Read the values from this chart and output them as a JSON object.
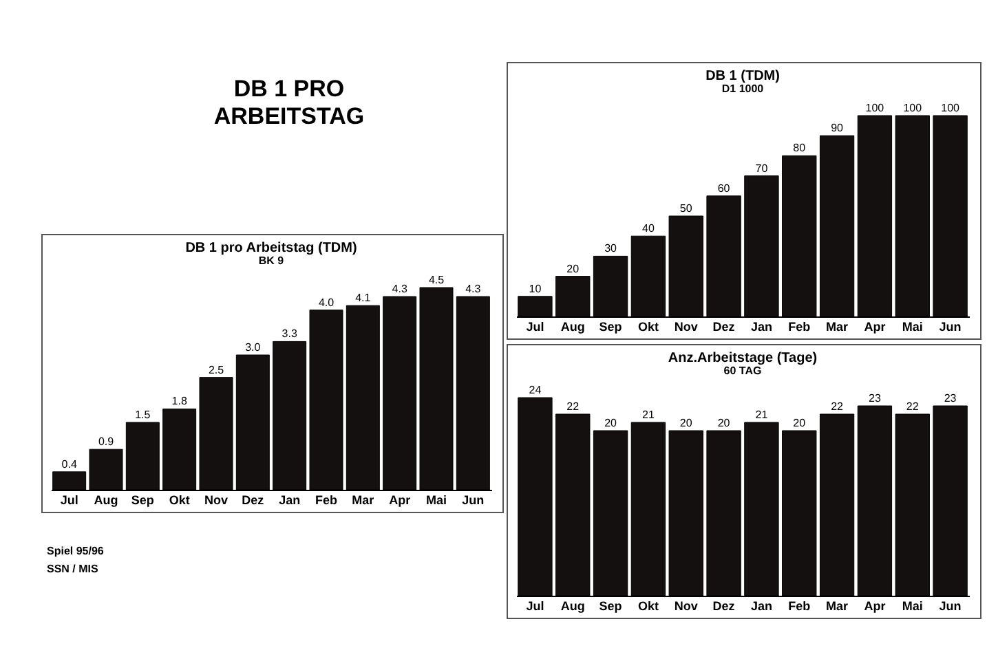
{
  "chart_data": [
    {
      "type": "other",
      "title": "DB 1 PRO\nARBEITSTAG",
      "annotations": [
        "Spiel 95/96",
        "SSN / MIS"
      ]
    },
    {
      "type": "bar",
      "title": "DB 1 pro Arbeitstag (TDM)",
      "subtitle": "BK 9",
      "categories": [
        "Jul",
        "Aug",
        "Sep",
        "Okt",
        "Nov",
        "Dez",
        "Jan",
        "Feb",
        "Mar",
        "Apr",
        "Mai",
        "Jun"
      ],
      "values": [
        0.4,
        0.9,
        1.5,
        1.8,
        2.5,
        3.0,
        3.3,
        4.0,
        4.1,
        4.3,
        4.5,
        4.3
      ],
      "color": "#141010",
      "data_labels": true,
      "value_labels": [
        "0.4",
        "0.9",
        "1.5",
        "1.8",
        "2.5",
        "3.0",
        "3.3",
        "4.0",
        "4.1",
        "4.3",
        "4.5",
        "4.3"
      ]
    },
    {
      "type": "bar",
      "title": "DB 1 (TDM)",
      "subtitle": "D1 1000",
      "categories": [
        "Jul",
        "Aug",
        "Sep",
        "Okt",
        "Nov",
        "Dez",
        "Jan",
        "Feb",
        "Mar",
        "Apr",
        "Mai",
        "Jun"
      ],
      "values": [
        10,
        20,
        30,
        40,
        50,
        60,
        70,
        80,
        90,
        100,
        100,
        100
      ],
      "color": "#141010",
      "data_labels": true
    },
    {
      "type": "bar",
      "title": "Anz.Arbeitstage (Tage)",
      "subtitle": "60 TAG",
      "categories": [
        "Jul",
        "Aug",
        "Sep",
        "Okt",
        "Nov",
        "Dez",
        "Jan",
        "Feb",
        "Mar",
        "Apr",
        "Mai",
        "Jun"
      ],
      "values": [
        24,
        22,
        20,
        21,
        20,
        20,
        21,
        20,
        22,
        23,
        22,
        23
      ],
      "color": "#141010",
      "data_labels": true
    }
  ]
}
